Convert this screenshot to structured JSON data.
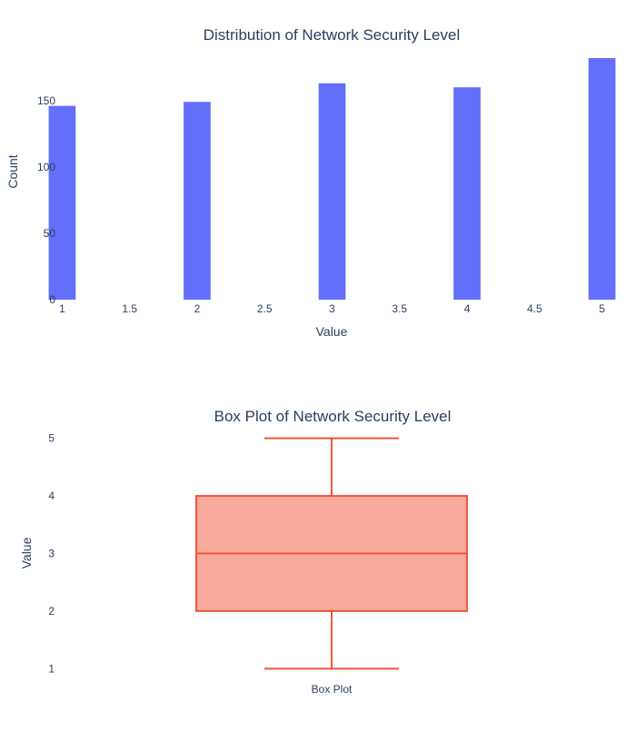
{
  "chart_data": [
    {
      "type": "bar",
      "title": "Distribution of Network Security Level",
      "xlabel": "Value",
      "ylabel": "Count",
      "categories": [
        1,
        2,
        3,
        4,
        5
      ],
      "values": [
        146,
        149,
        163,
        160,
        182
      ],
      "xlim": [
        0.95,
        5.05
      ],
      "ylim": [
        0,
        182
      ],
      "xticks": [
        "1",
        "1.5",
        "2",
        "2.5",
        "3",
        "3.5",
        "4",
        "4.5",
        "5"
      ],
      "yticks": [
        "0",
        "50",
        "100",
        "150"
      ],
      "color": "#636efa",
      "grid": false
    },
    {
      "type": "box",
      "title": "Box Plot of Network Security Level",
      "xlabel": "",
      "ylabel": "Value",
      "category": "Box Plot",
      "stats": {
        "min": 1,
        "q1": 2,
        "median": 3,
        "q3": 4,
        "max": 5
      },
      "ylim": [
        0.8,
        5.2
      ],
      "yticks": [
        "1",
        "2",
        "3",
        "4",
        "5"
      ],
      "line_color": "#ef553b",
      "fill_color": "#f7aa9c",
      "grid": false
    }
  ]
}
